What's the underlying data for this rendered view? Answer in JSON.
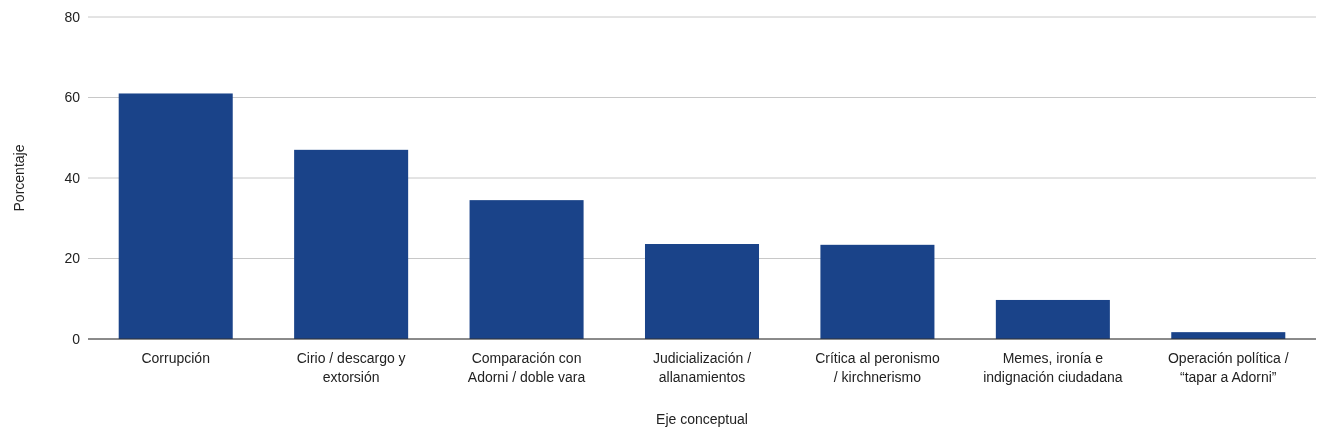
{
  "chart_data": {
    "type": "bar",
    "categories": [
      "Corrupción",
      "Cirio / descargo y extorsión",
      "Comparación con Adorni / doble vara",
      "Judicialización / allanamientos",
      "Crítica al peronismo / kirchnerismo",
      "Memes, ironía e indignación ciudadana",
      "Operación política / “tapar a Adorni”"
    ],
    "values": [
      61,
      47,
      34.5,
      23.6,
      23.4,
      9.7,
      1.7
    ],
    "color": "#1a4389",
    "xlabel": "Eje conceptual",
    "ylabel": "Porcentaje",
    "ylim": [
      0,
      80
    ],
    "yticks": [
      0,
      20,
      40,
      60,
      80
    ],
    "grid": "y"
  }
}
